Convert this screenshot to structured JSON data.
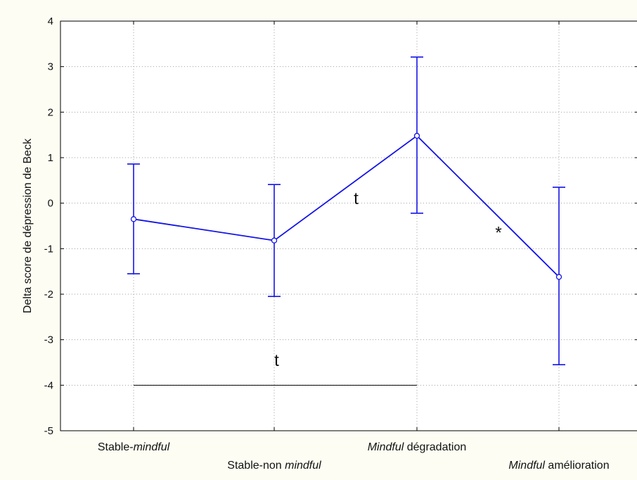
{
  "chart_data": {
    "type": "line",
    "title": "",
    "ylabel": "Delta score de dépression de Beck",
    "xlabel": "",
    "ylim": [
      -5,
      4
    ],
    "yticks": [
      4,
      3,
      2,
      1,
      0,
      -1,
      -2,
      -3,
      -4,
      -5
    ],
    "grid": true,
    "categories": [
      {
        "plain": "Stable-",
        "italic": "mindful",
        "after": "",
        "row": 1
      },
      {
        "plain": "Stable-non ",
        "italic": "mindful",
        "after": "",
        "row": 2
      },
      {
        "plain": "",
        "italic": "Mindful",
        "after": " dégradation",
        "row": 1
      },
      {
        "plain": "",
        "italic": "Mindful",
        "after": " amélioration",
        "row": 2
      }
    ],
    "series": [
      {
        "values": [
          -0.35,
          -0.82,
          1.48,
          -1.62
        ],
        "error_low": [
          -1.55,
          -2.05,
          -0.22,
          -3.55
        ],
        "error_high": [
          0.86,
          0.41,
          3.21,
          0.35
        ],
        "color": "#1414e6"
      }
    ],
    "annotations": [
      {
        "text": "t",
        "between": [
          1,
          2
        ],
        "y": 0.1
      },
      {
        "text": "*",
        "between": [
          2,
          3
        ],
        "y": -0.65
      },
      {
        "text": "t",
        "bracket": [
          0,
          2
        ],
        "y": -4.0,
        "label_y": -3.45
      }
    ],
    "colors": {
      "frame_bg": "#fdfdf3",
      "plot_bg": "#ffffff",
      "grid": "#a0a0a0",
      "axis": "#000000"
    }
  }
}
